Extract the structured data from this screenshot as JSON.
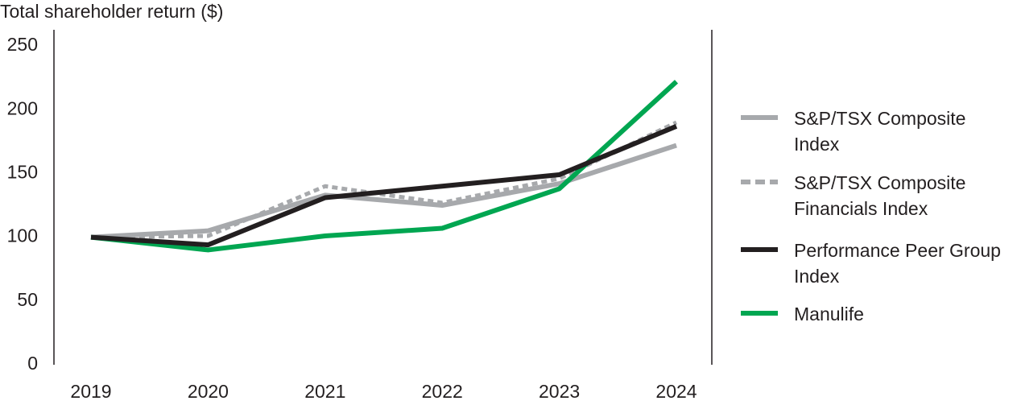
{
  "chart_data": {
    "type": "line",
    "title": "Total shareholder return ($)",
    "categories": [
      "2019",
      "2020",
      "2021",
      "2022",
      "2023",
      "2024"
    ],
    "series": [
      {
        "name": "S&P/TSX Composite Index",
        "color": "#a7a9ac",
        "style": "solid",
        "values": [
          100,
          105,
          133,
          125,
          142,
          172
        ]
      },
      {
        "name": "S&P/TSX Composite Financials Index",
        "color": "#a7a9ac",
        "style": "dashed",
        "values": [
          100,
          101,
          140,
          127,
          146,
          190
        ]
      },
      {
        "name": "Performance Peer Group Index",
        "color": "#231f20",
        "style": "solid",
        "values": [
          100,
          94,
          131,
          140,
          149,
          187
        ]
      },
      {
        "name": "Manulife",
        "color": "#00a651",
        "style": "solid",
        "values": [
          100,
          90,
          101,
          107,
          138,
          222
        ]
      }
    ],
    "ylim": [
      0,
      250
    ],
    "yticks": [
      0,
      50,
      100,
      150,
      200,
      250
    ],
    "grid": false,
    "legend": "right"
  }
}
